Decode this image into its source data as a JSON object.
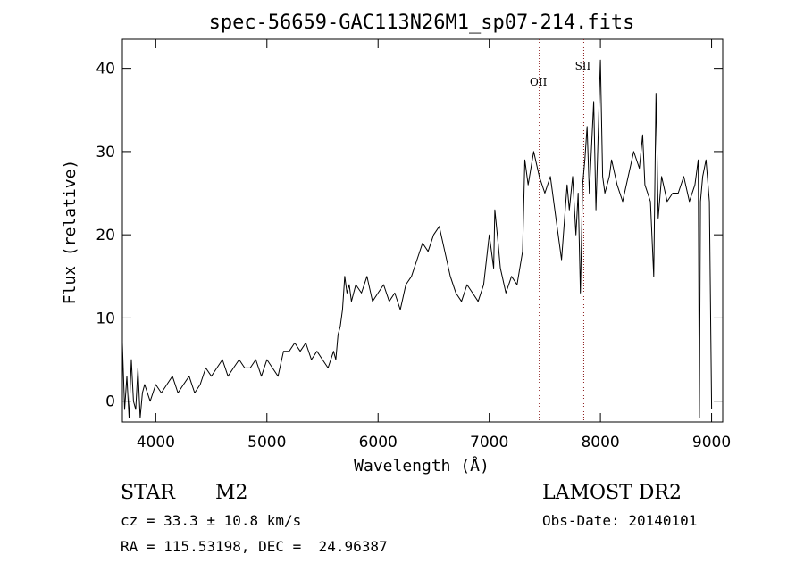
{
  "chart_data": {
    "type": "line",
    "title": "spec-56659-GAC113N26M1_sp07-214.fits",
    "xlabel": "Wavelength (Å)",
    "ylabel": "Flux (relative)",
    "xlim": [
      3700,
      9100
    ],
    "ylim": [
      -2.5,
      43.5
    ],
    "xticks": [
      4000,
      5000,
      6000,
      7000,
      8000,
      9000
    ],
    "yticks": [
      0,
      10,
      20,
      30,
      40
    ],
    "grid": false,
    "legend": "none",
    "line_color": "#000000",
    "marker_color": "#8b1a1a",
    "markers": [
      {
        "label": "OII",
        "x": 7450
      },
      {
        "label": "SII",
        "x": 7850
      }
    ],
    "series": [
      {
        "x": [
          3700,
          3720,
          3740,
          3760,
          3780,
          3800,
          3820,
          3840,
          3860,
          3880,
          3900,
          3950,
          4000,
          4050,
          4100,
          4150,
          4200,
          4250,
          4300,
          4350,
          4400,
          4450,
          4500,
          4550,
          4600,
          4650,
          4700,
          4750,
          4800,
          4850,
          4900,
          4950,
          5000,
          5050,
          5100,
          5150,
          5200,
          5250,
          5300,
          5350,
          5400,
          5450,
          5500,
          5550,
          5600,
          5620,
          5640,
          5660,
          5680,
          5700,
          5720,
          5740,
          5760,
          5800,
          5850,
          5900,
          5950,
          6000,
          6050,
          6100,
          6150,
          6200,
          6250,
          6300,
          6350,
          6400,
          6450,
          6500,
          6550,
          6600,
          6650,
          6700,
          6750,
          6800,
          6850,
          6900,
          6950,
          7000,
          7040,
          7050,
          7080,
          7100,
          7150,
          7200,
          7250,
          7300,
          7320,
          7350,
          7400,
          7450,
          7500,
          7550,
          7600,
          7650,
          7700,
          7720,
          7750,
          7780,
          7800,
          7820,
          7840,
          7860,
          7880,
          7900,
          7940,
          7960,
          8000,
          8020,
          8040,
          8060,
          8080,
          8100,
          8150,
          8200,
          8250,
          8300,
          8350,
          8380,
          8400,
          8450,
          8480,
          8500,
          8520,
          8550,
          8600,
          8650,
          8700,
          8750,
          8800,
          8850,
          8880,
          8890,
          8900,
          8920,
          8950,
          8980,
          9000
        ],
        "y": [
          7,
          -1,
          3,
          -2,
          5,
          0,
          -1,
          4,
          -2,
          1,
          2,
          0,
          2,
          1,
          2,
          3,
          1,
          2,
          3,
          1,
          2,
          4,
          3,
          4,
          5,
          3,
          4,
          5,
          4,
          4,
          5,
          3,
          5,
          4,
          3,
          6,
          6,
          7,
          6,
          7,
          5,
          6,
          5,
          4,
          6,
          5,
          8,
          9,
          11,
          15,
          13,
          14,
          12,
          14,
          13,
          15,
          12,
          13,
          14,
          12,
          13,
          11,
          14,
          15,
          17,
          19,
          18,
          20,
          21,
          18,
          15,
          13,
          12,
          14,
          13,
          12,
          14,
          20,
          16,
          23,
          19,
          16,
          13,
          15,
          14,
          18,
          29,
          26,
          30,
          27,
          25,
          27,
          22,
          17,
          26,
          23,
          27,
          20,
          25,
          13,
          26,
          29,
          33,
          25,
          36,
          23,
          41,
          27,
          25,
          26,
          27,
          29,
          26,
          24,
          27,
          30,
          28,
          32,
          26,
          24,
          15,
          37,
          22,
          27,
          24,
          25,
          25,
          27,
          24,
          26,
          29,
          -2,
          24,
          27,
          29,
          24,
          -1
        ]
      }
    ]
  },
  "footer": {
    "object_class": "STAR",
    "subclass": "M2",
    "velocity": "cz = 33.3 ± 10.8 km/s",
    "coords": "RA = 115.53198, DEC =  24.96387",
    "survey": "LAMOST DR2",
    "obs_date": "Obs-Date: 20140101"
  }
}
